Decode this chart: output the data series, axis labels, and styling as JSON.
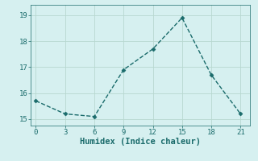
{
  "x": [
    0,
    3,
    6,
    9,
    12,
    15,
    18,
    21
  ],
  "y": [
    15.7,
    15.2,
    15.1,
    16.9,
    17.7,
    18.9,
    16.7,
    15.2
  ],
  "line_color": "#1a6b6b",
  "marker": "D",
  "marker_size": 2.5,
  "linewidth": 1.0,
  "linestyle": "--",
  "xlabel": "Humidex (Indice chaleur)",
  "xlabel_fontsize": 7.5,
  "xlabel_fontweight": "bold",
  "xlabel_color": "#1a6b6b",
  "background_color": "#d6f0f0",
  "grid_color": "#b8d8d0",
  "tick_color": "#1a6b6b",
  "xlim": [
    -0.5,
    22
  ],
  "ylim": [
    14.75,
    19.4
  ],
  "xticks": [
    0,
    3,
    6,
    9,
    12,
    15,
    18,
    21
  ],
  "yticks": [
    15,
    16,
    17,
    18,
    19
  ],
  "tick_fontsize": 6.5
}
